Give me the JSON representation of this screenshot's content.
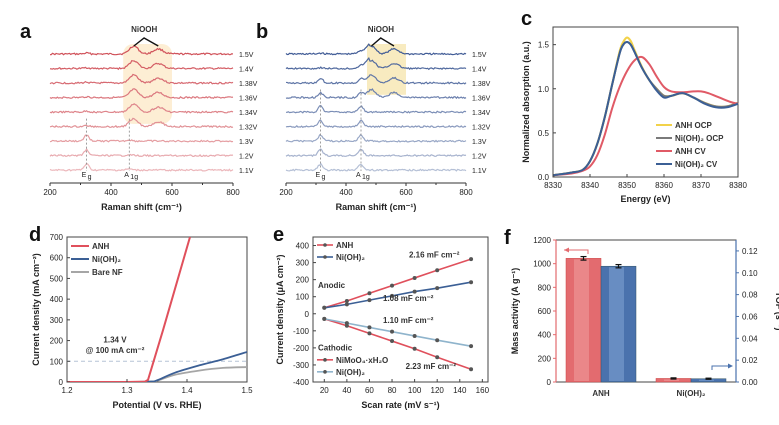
{
  "chart_data": [
    {
      "id": "a",
      "type": "line",
      "panel_letter": "a",
      "title": "",
      "xlabel": "Raman shift (cm⁻¹)",
      "ylabel": "",
      "xlim": [
        200,
        800
      ],
      "xticks": [
        "200",
        "400",
        "600",
        "800"
      ],
      "grid": false,
      "annotation_top": "NiOOH",
      "peak_labels": [
        "Eg",
        "A1g"
      ],
      "peak_positions": [
        320,
        460
      ],
      "niooh_peaks": [
        475,
        555
      ],
      "highlight_range": [
        440,
        600
      ],
      "highlight_from_series": "1.32V",
      "series_labels": [
        "1.5V",
        "1.4V",
        "1.38V",
        "1.36V",
        "1.34V",
        "1.32V",
        "1.3V",
        "1.2V",
        "1.1V"
      ],
      "color": "#c8323c"
    },
    {
      "id": "b",
      "type": "line",
      "panel_letter": "b",
      "title": "",
      "xlabel": "Raman shift (cm⁻¹)",
      "ylabel": "",
      "xlim": [
        200,
        800
      ],
      "xticks": [
        "200",
        "400",
        "600",
        "800"
      ],
      "grid": false,
      "annotation_top": "NiOOH",
      "peak_labels": [
        "Eg",
        "A1g"
      ],
      "peak_positions": [
        315,
        450
      ],
      "niooh_peaks": [
        485,
        560
      ],
      "highlight_range": [
        470,
        600
      ],
      "highlight_from_series": "1.36V",
      "series_labels": [
        "1.5V",
        "1.4V",
        "1.38V",
        "1.36V",
        "1.34V",
        "1.32V",
        "1.3V",
        "1.2V",
        "1.1V"
      ],
      "color": "#2c4a8a"
    },
    {
      "id": "c",
      "type": "line",
      "panel_letter": "c",
      "title": "",
      "xlabel": "Energy (eV)",
      "ylabel": "Normalized absorption (a.u.)",
      "xlim": [
        8330,
        8380
      ],
      "ylim": [
        0.0,
        1.7
      ],
      "xticks": [
        "8330",
        "8340",
        "8350",
        "8360",
        "8370",
        "8380"
      ],
      "yticks": [
        "0.0",
        "0.5",
        "1.0",
        "1.5"
      ],
      "legend": "bottom-right",
      "grid": false,
      "series": [
        {
          "name": "ANH OCP",
          "color": "#f2d24a",
          "x": [
            8330,
            8335,
            8338,
            8340,
            8342,
            8344,
            8346,
            8348,
            8349,
            8350,
            8351,
            8352,
            8354,
            8356,
            8358,
            8360,
            8362,
            8365,
            8368,
            8371,
            8374,
            8377,
            8380
          ],
          "y": [
            0.02,
            0.05,
            0.08,
            0.18,
            0.38,
            0.68,
            1.05,
            1.42,
            1.53,
            1.58,
            1.54,
            1.44,
            1.25,
            1.1,
            1.0,
            0.92,
            0.92,
            0.95,
            0.9,
            0.84,
            0.8,
            0.8,
            0.84
          ]
        },
        {
          "name": "Ni(OH)₂ OCP",
          "color": "#7a7a7a",
          "x": [
            8330,
            8335,
            8338,
            8340,
            8342,
            8344,
            8346,
            8348,
            8349,
            8350,
            8351,
            8352,
            8354,
            8356,
            8358,
            8360,
            8362,
            8365,
            8368,
            8371,
            8374,
            8377,
            8380
          ],
          "y": [
            0.02,
            0.05,
            0.08,
            0.18,
            0.38,
            0.68,
            1.05,
            1.4,
            1.5,
            1.53,
            1.5,
            1.42,
            1.24,
            1.1,
            1.0,
            0.92,
            0.92,
            0.95,
            0.9,
            0.84,
            0.8,
            0.8,
            0.84
          ]
        },
        {
          "name": "ANH CV",
          "color": "#e05a66",
          "x": [
            8330,
            8335,
            8338,
            8340,
            8342,
            8344,
            8346,
            8348,
            8350,
            8352,
            8354,
            8356,
            8358,
            8360,
            8362,
            8365,
            8368,
            8370,
            8372,
            8375,
            8378,
            8380
          ],
          "y": [
            0.02,
            0.04,
            0.07,
            0.12,
            0.25,
            0.48,
            0.78,
            1.02,
            1.2,
            1.32,
            1.36,
            1.28,
            1.14,
            1.02,
            0.97,
            0.96,
            0.97,
            0.97,
            0.95,
            0.9,
            0.85,
            0.83
          ]
        },
        {
          "name": "Ni(OH)₂ CV",
          "color": "#3b5f95",
          "x": [
            8330,
            8335,
            8338,
            8340,
            8342,
            8344,
            8346,
            8348,
            8349,
            8350,
            8351,
            8352,
            8354,
            8356,
            8358,
            8360,
            8362,
            8365,
            8368,
            8371,
            8374,
            8377,
            8380
          ],
          "y": [
            0.02,
            0.05,
            0.08,
            0.18,
            0.38,
            0.68,
            1.05,
            1.4,
            1.5,
            1.53,
            1.5,
            1.42,
            1.24,
            1.1,
            0.98,
            0.9,
            0.92,
            0.95,
            0.9,
            0.83,
            0.79,
            0.79,
            0.83
          ]
        }
      ]
    },
    {
      "id": "d",
      "type": "line",
      "panel_letter": "d",
      "title": "",
      "xlabel": "Potential (V vs. RHE)",
      "ylabel": "Current density (mA cm⁻²)",
      "xlim": [
        1.2,
        1.5
      ],
      "ylim": [
        0,
        700
      ],
      "xticks": [
        "1.2",
        "1.3",
        "1.4",
        "1.5"
      ],
      "yticks": [
        "0",
        "100",
        "200",
        "300",
        "400",
        "500",
        "600",
        "700"
      ],
      "legend": "top-left",
      "grid": false,
      "reference_line_y": 100,
      "annotation": [
        "1.34 V",
        "@ 100 mA cm⁻²"
      ],
      "annotation_color": "#e05a66",
      "series": [
        {
          "name": "ANH",
          "color": "#e0505c",
          "x": [
            1.2,
            1.3,
            1.33,
            1.335,
            1.36,
            1.38,
            1.405
          ],
          "y": [
            0,
            0,
            2,
            10,
            250,
            450,
            700
          ]
        },
        {
          "name": "Ni(OH)₂",
          "color": "#3b5f95",
          "x": [
            1.2,
            1.3,
            1.34,
            1.35,
            1.38,
            1.42,
            1.46,
            1.5
          ],
          "y": [
            0,
            0,
            2,
            8,
            45,
            80,
            110,
            145
          ]
        },
        {
          "name": "Bare NF",
          "color": "#a6a6a6",
          "x": [
            1.2,
            1.3,
            1.34,
            1.35,
            1.38,
            1.42,
            1.46,
            1.5
          ],
          "y": [
            0,
            0,
            2,
            6,
            35,
            55,
            68,
            72
          ]
        }
      ]
    },
    {
      "id": "e",
      "type": "line",
      "panel_letter": "e",
      "title": "",
      "xlabel": "Scan rate (mV s⁻¹)",
      "ylabel": "Current density (μA cm⁻²)",
      "xlim": [
        10,
        165
      ],
      "ylim": [
        -400,
        450
      ],
      "xticks": [
        "20",
        "40",
        "60",
        "80",
        "100",
        "120",
        "140",
        "160"
      ],
      "yticks": [
        "-400",
        "-300",
        "-200",
        "-100",
        "0",
        "100",
        "200",
        "300",
        "400"
      ],
      "grid": false,
      "group_labels": [
        "Anodic",
        "Cathodic"
      ],
      "legend_anodic": [
        "ANH",
        "Ni(OH)₂"
      ],
      "legend_cathodic": [
        "NiMoO₄·xH₂O",
        "Ni(OH)₂"
      ],
      "slope_labels": [
        {
          "text": "2.16 mF cm⁻²",
          "color": "#e0505c"
        },
        {
          "text": "1.08 mF cm⁻²",
          "color": "#3b5f95"
        },
        {
          "text": "1.10 mF cm⁻²",
          "color": "#8fb4cc"
        },
        {
          "text": "2.23 mF cm⁻²",
          "color": "#e0505c"
        }
      ],
      "x": [
        20,
        40,
        60,
        80,
        100,
        120,
        150
      ],
      "series": [
        {
          "name": "ANH anodic",
          "color": "#e0505c",
          "values": [
            35,
            75,
            120,
            165,
            210,
            255,
            320
          ]
        },
        {
          "name": "Ni(OH)₂ anodic",
          "color": "#3b5f95",
          "values": [
            35,
            55,
            80,
            105,
            130,
            150,
            185
          ]
        },
        {
          "name": "NiMoO₄·xH₂O cathodic",
          "color": "#e0505c",
          "values": [
            -30,
            -70,
            -115,
            -160,
            -205,
            -255,
            -325
          ]
        },
        {
          "name": "Ni(OH)₂ cathodic",
          "color": "#8fb4cc",
          "values": [
            -30,
            -55,
            -80,
            -105,
            -130,
            -155,
            -190
          ]
        }
      ]
    },
    {
      "id": "f",
      "type": "bar",
      "panel_letter": "f",
      "title": "",
      "xlabel": "",
      "ylabel": "Mass activity (A g⁻¹)",
      "ylabel_right": "TOF (s⁻¹)",
      "categories": [
        "ANH",
        "Ni(OH)₂"
      ],
      "ylim": [
        0,
        1200
      ],
      "ylim_right": [
        0,
        0.13
      ],
      "yticks": [
        "0",
        "200",
        "400",
        "600",
        "800",
        "1000",
        "1200"
      ],
      "yticks_right": [
        "0.00",
        "0.02",
        "0.04",
        "0.06",
        "0.08",
        "0.10",
        "0.12"
      ],
      "grid": false,
      "series": [
        {
          "name": "Mass activity",
          "axis": "left",
          "color": "#e36b6f",
          "values": [
            1045,
            30
          ],
          "errors": [
            15,
            5
          ]
        },
        {
          "name": "TOF",
          "axis": "right",
          "color": "#4a72ad",
          "values": [
            0.106,
            0.003
          ],
          "errors": [
            0.0015,
            0.0005
          ]
        }
      ]
    }
  ]
}
